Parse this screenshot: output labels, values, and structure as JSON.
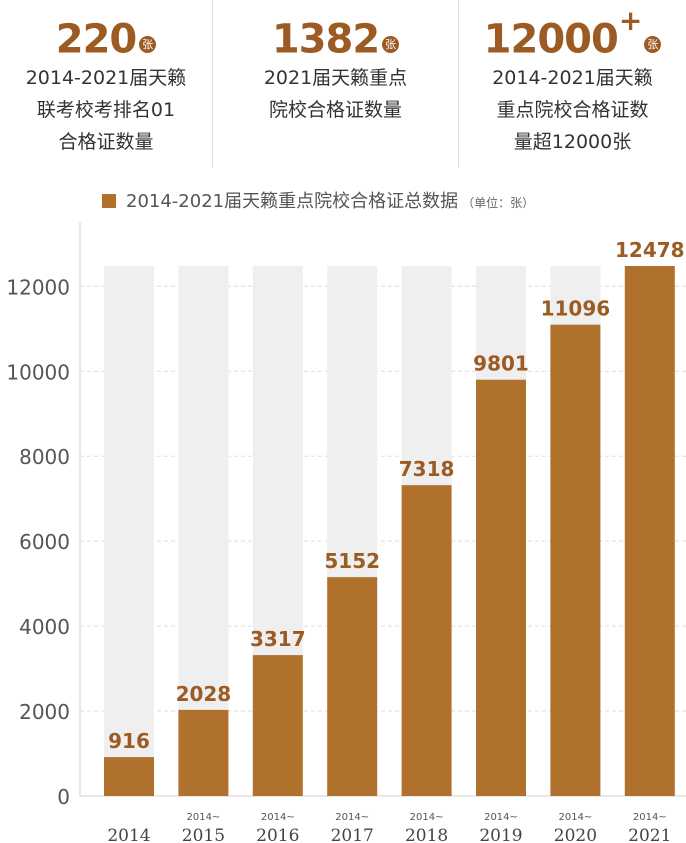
{
  "stats": [
    {
      "value": "220",
      "plus": "",
      "unit": "张",
      "desc": [
        "2014-2021届天籁",
        "联考校考排名01",
        "合格证数量"
      ]
    },
    {
      "value": "1382",
      "plus": "",
      "unit": "张",
      "desc": [
        "2021届天籁重点",
        "院校合格证数量"
      ]
    },
    {
      "value": "12000",
      "plus": "+",
      "unit": "张",
      "desc": [
        "2014-2021届天籁",
        "重点院校合格证数",
        "量超12000张"
      ]
    }
  ],
  "chart_data": {
    "type": "bar",
    "title": "2014-2021届天籁重点院校合格证总数据",
    "unit_note": "（单位：张）",
    "categories": [
      {
        "prefix": "",
        "year": "2014"
      },
      {
        "prefix": "2014~",
        "year": "2015"
      },
      {
        "prefix": "2014~",
        "year": "2016"
      },
      {
        "prefix": "2014~",
        "year": "2017"
      },
      {
        "prefix": "2014~",
        "year": "2018"
      },
      {
        "prefix": "2014~",
        "year": "2019"
      },
      {
        "prefix": "2014~",
        "year": "2020"
      },
      {
        "prefix": "2014~",
        "year": "2021"
      }
    ],
    "values": [
      916,
      2028,
      3317,
      5152,
      7318,
      9801,
      11096,
      12478
    ],
    "background_max": 12478,
    "yticks": [
      0,
      2000,
      4000,
      6000,
      8000,
      10000,
      12000
    ],
    "ylim": [
      0,
      12478
    ],
    "grid": true,
    "legend": "top",
    "colors": {
      "bar": "#b0712d",
      "background_bar": "#efefef",
      "label": "#9b5b23",
      "grid": "#dddddd"
    }
  }
}
